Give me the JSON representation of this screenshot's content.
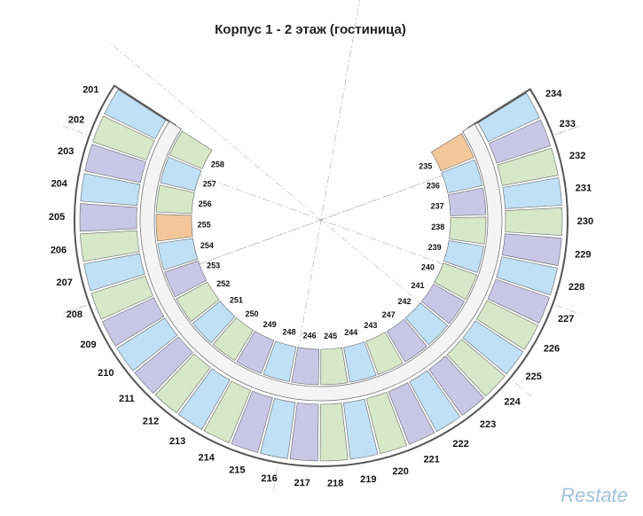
{
  "title": "Корпус 1 - 2 этаж (гостиница)",
  "outer_rooms": [
    "201",
    "202",
    "203",
    "204",
    "205",
    "206",
    "207",
    "208",
    "209",
    "210",
    "211",
    "212",
    "213",
    "214",
    "215",
    "216",
    "217",
    "218",
    "219",
    "220",
    "221",
    "222",
    "223",
    "224",
    "225",
    "226",
    "227",
    "228",
    "229",
    "230",
    "231",
    "232",
    "233",
    "234"
  ],
  "inner_rooms": [
    "235",
    "236",
    "237",
    "238",
    "239",
    "240",
    "241",
    "242",
    "247",
    "243",
    "244",
    "245",
    "246",
    "248",
    "249",
    "250",
    "251",
    "252",
    "253",
    "254",
    "255",
    "256",
    "257",
    "258"
  ],
  "watermark": "Restate"
}
